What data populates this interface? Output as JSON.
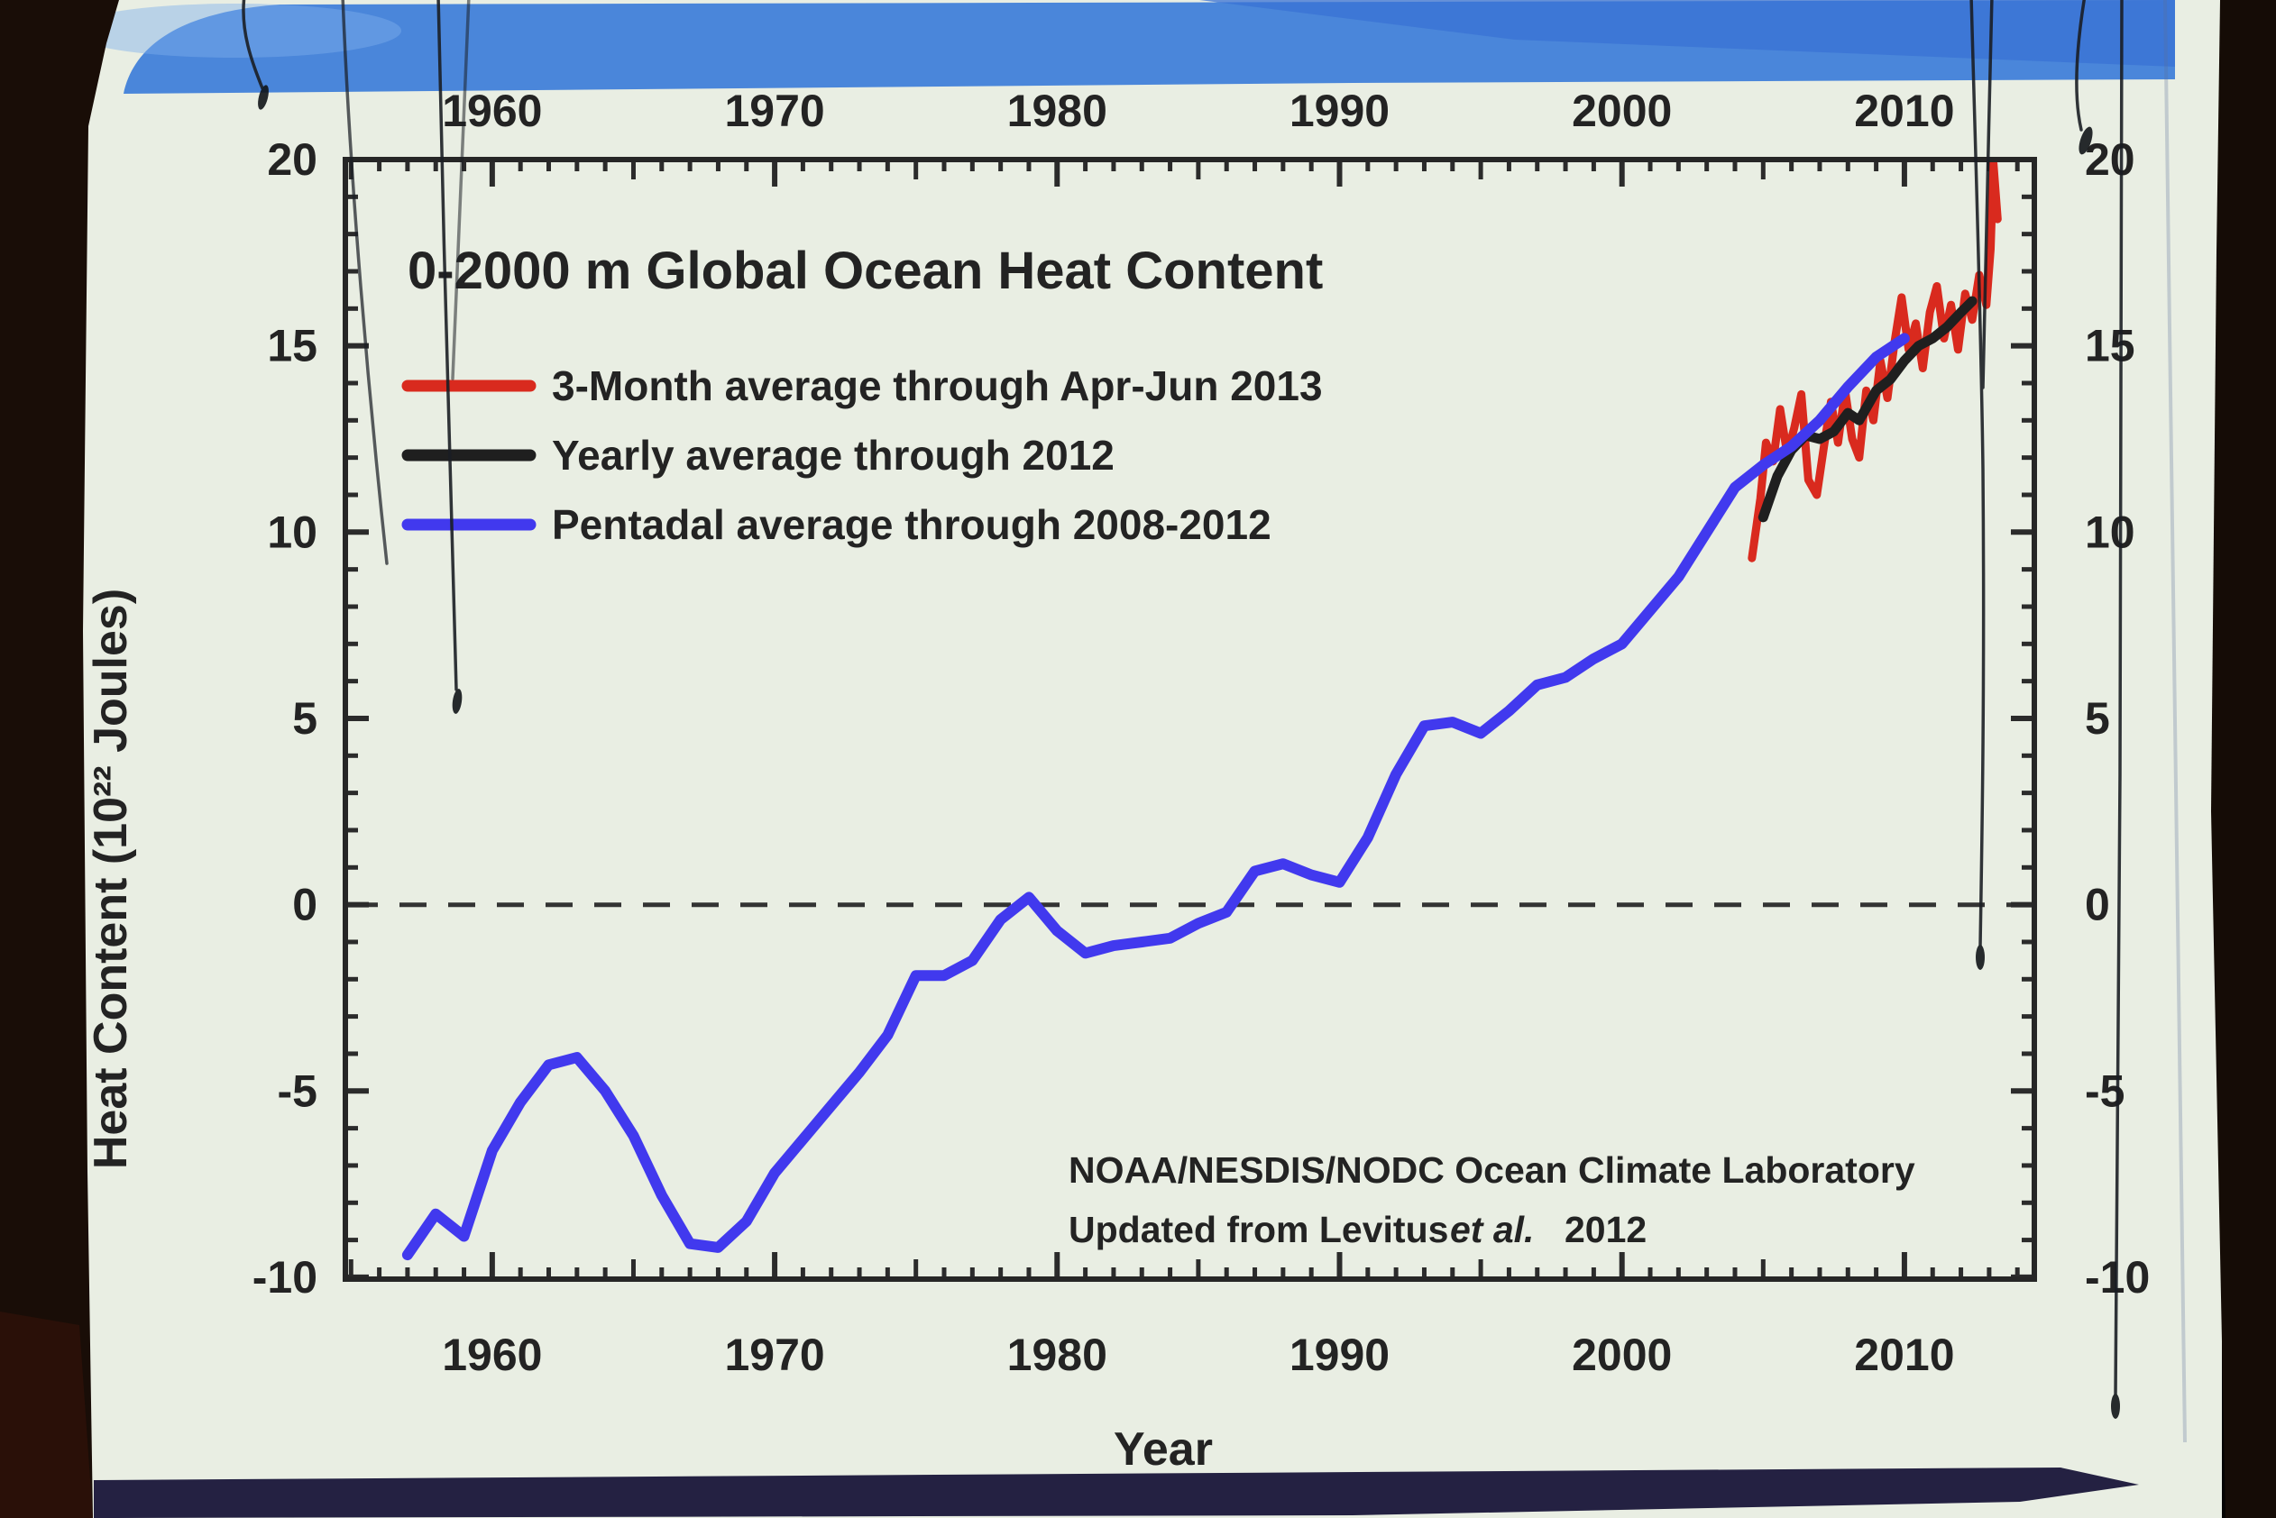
{
  "photo": {
    "screen_color": "#e9eee3",
    "header_band_color": "#4a86da",
    "header_band_dark": "#3a72d4",
    "header_band_light": "#7fb0ea",
    "footer_bar_color": "#242142",
    "border_color": "#170d07",
    "axis_color": "#262626"
  },
  "chart_data": {
    "type": "line",
    "title": "0-2000 m Global Ocean Heat Content",
    "xlabel": "Year",
    "ylabel": "Heat Content (10²² Joules)",
    "x_ticks": [
      1960,
      1970,
      1980,
      1990,
      2000,
      2010
    ],
    "y_ticks": [
      20,
      15,
      10,
      5,
      0,
      -5,
      -10
    ],
    "xlim": [
      1954.8,
      2014.6
    ],
    "ylim": [
      -10.05,
      20
    ],
    "grid": false,
    "zero_line": true,
    "legend_position": "top-left",
    "annotation": {
      "line1": "NOAA/NESDIS/NODC Ocean Climate Laboratory",
      "line2a": "Updated from Levitus",
      "line2b": "et al.",
      "line2c": "2012"
    },
    "series": [
      {
        "name": "3-Month average through Apr-Jun 2013",
        "color": "#d92a1e",
        "points": [
          [
            2004.6,
            9.3
          ],
          [
            2004.9,
            10.9
          ],
          [
            2005.1,
            12.4
          ],
          [
            2005.35,
            11.9
          ],
          [
            2005.6,
            13.3
          ],
          [
            2005.85,
            12.1
          ],
          [
            2006.1,
            12.8
          ],
          [
            2006.35,
            13.7
          ],
          [
            2006.6,
            11.4
          ],
          [
            2006.9,
            11.0
          ],
          [
            2007.15,
            12.3
          ],
          [
            2007.4,
            13.5
          ],
          [
            2007.65,
            12.4
          ],
          [
            2007.9,
            13.8
          ],
          [
            2008.15,
            12.5
          ],
          [
            2008.4,
            12.0
          ],
          [
            2008.65,
            13.8
          ],
          [
            2008.9,
            13.0
          ],
          [
            2009.15,
            14.6
          ],
          [
            2009.4,
            13.6
          ],
          [
            2009.65,
            15.1
          ],
          [
            2009.9,
            16.3
          ],
          [
            2010.15,
            14.9
          ],
          [
            2010.4,
            15.6
          ],
          [
            2010.65,
            14.4
          ],
          [
            2010.9,
            15.9
          ],
          [
            2011.15,
            16.6
          ],
          [
            2011.4,
            15.2
          ],
          [
            2011.65,
            16.1
          ],
          [
            2011.9,
            14.9
          ],
          [
            2012.15,
            16.4
          ],
          [
            2012.4,
            15.7
          ],
          [
            2012.65,
            16.9
          ],
          [
            2012.9,
            16.1
          ],
          [
            2013.05,
            17.6
          ],
          [
            2013.15,
            19.9
          ],
          [
            2013.3,
            18.4
          ]
        ]
      },
      {
        "name": "Yearly average through 2012",
        "color": "#1f1f1f",
        "points": [
          [
            2005,
            10.4
          ],
          [
            2005.5,
            11.5
          ],
          [
            2006,
            12.2
          ],
          [
            2006.5,
            12.6
          ],
          [
            2007,
            12.5
          ],
          [
            2007.5,
            12.7
          ],
          [
            2008,
            13.2
          ],
          [
            2008.4,
            13.0
          ],
          [
            2009,
            13.8
          ],
          [
            2009.5,
            14.1
          ],
          [
            2010,
            14.6
          ],
          [
            2010.5,
            15.0
          ],
          [
            2011,
            15.2
          ],
          [
            2011.5,
            15.5
          ],
          [
            2012,
            15.9
          ],
          [
            2012.4,
            16.2
          ]
        ]
      },
      {
        "name": "Pentadal average through 2008-2012",
        "color": "#4139ee",
        "points": [
          [
            1957,
            -9.4
          ],
          [
            1958,
            -8.3
          ],
          [
            1959,
            -8.9
          ],
          [
            1960,
            -6.6
          ],
          [
            1961,
            -5.3
          ],
          [
            1962,
            -4.3
          ],
          [
            1963,
            -4.1
          ],
          [
            1964,
            -5.0
          ],
          [
            1965,
            -6.2
          ],
          [
            1966,
            -7.8
          ],
          [
            1967,
            -9.1
          ],
          [
            1968,
            -9.2
          ],
          [
            1969,
            -8.5
          ],
          [
            1970,
            -7.2
          ],
          [
            1971,
            -6.3
          ],
          [
            1972,
            -5.4
          ],
          [
            1973,
            -4.5
          ],
          [
            1974,
            -3.5
          ],
          [
            1975,
            -1.9
          ],
          [
            1976,
            -1.9
          ],
          [
            1977,
            -1.5
          ],
          [
            1978,
            -0.4
          ],
          [
            1979,
            0.2
          ],
          [
            1980,
            -0.7
          ],
          [
            1981,
            -1.3
          ],
          [
            1982,
            -1.1
          ],
          [
            1983,
            -1.0
          ],
          [
            1984,
            -0.9
          ],
          [
            1985,
            -0.5
          ],
          [
            1986,
            -0.2
          ],
          [
            1987,
            0.9
          ],
          [
            1988,
            1.1
          ],
          [
            1989,
            0.8
          ],
          [
            1990,
            0.6
          ],
          [
            1991,
            1.8
          ],
          [
            1992,
            3.5
          ],
          [
            1993,
            4.8
          ],
          [
            1994,
            4.9
          ],
          [
            1995,
            4.6
          ],
          [
            1996,
            5.2
          ],
          [
            1997,
            5.9
          ],
          [
            1998,
            6.1
          ],
          [
            1999,
            6.6
          ],
          [
            2000,
            7.0
          ],
          [
            2001,
            7.9
          ],
          [
            2002,
            8.8
          ],
          [
            2003,
            10.0
          ],
          [
            2004,
            11.2
          ],
          [
            2005,
            11.8
          ],
          [
            2006,
            12.3
          ],
          [
            2007,
            13.0
          ],
          [
            2008,
            13.9
          ],
          [
            2009,
            14.7
          ],
          [
            2010,
            15.2
          ]
        ]
      }
    ]
  }
}
